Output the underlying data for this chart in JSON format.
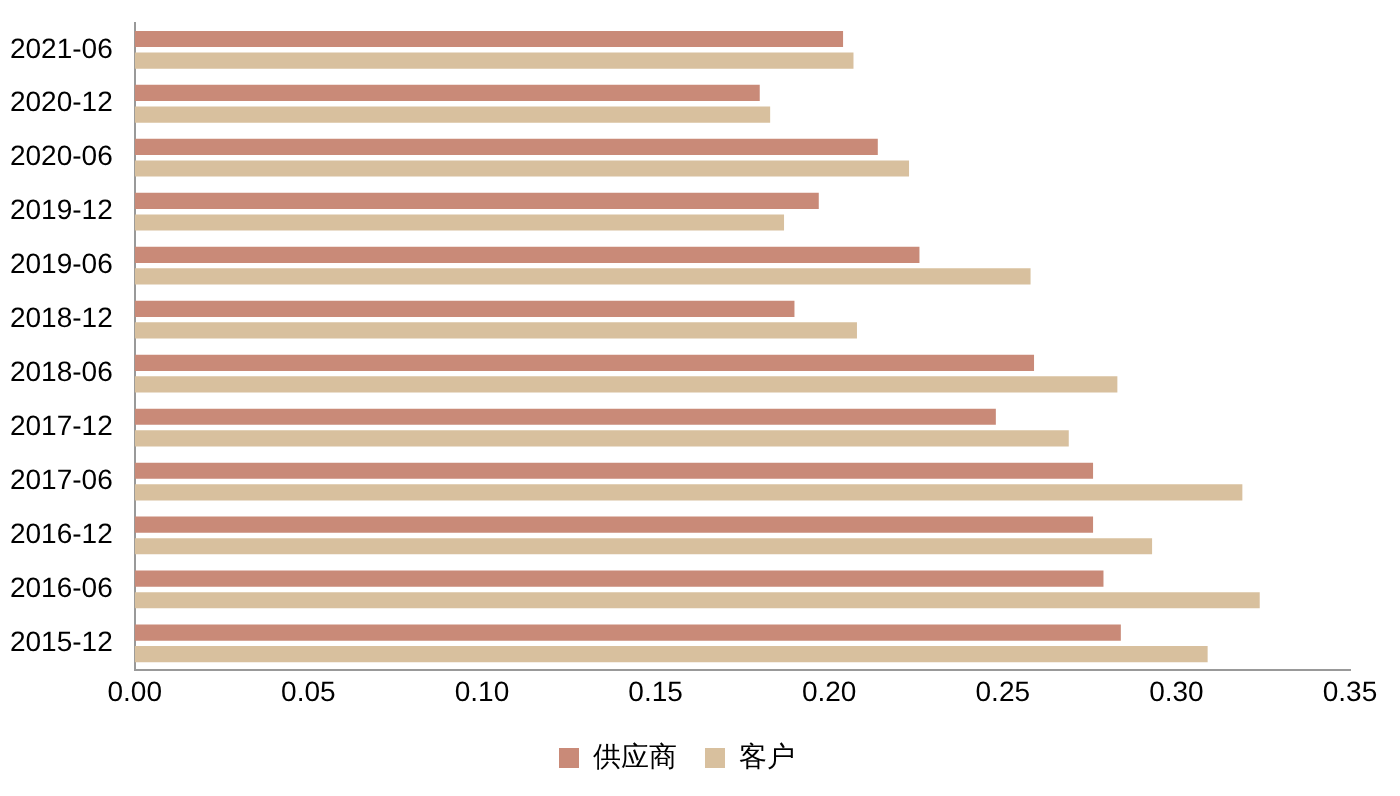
{
  "chart_data": {
    "type": "bar",
    "orientation": "horizontal",
    "categories": [
      "2021-06",
      "2020-12",
      "2020-06",
      "2019-12",
      "2019-06",
      "2018-12",
      "2018-06",
      "2017-12",
      "2017-06",
      "2016-12",
      "2016-06",
      "2015-12"
    ],
    "series": [
      {
        "name": "供应商",
        "color": "#c98a78",
        "values": [
          0.204,
          0.18,
          0.214,
          0.197,
          0.226,
          0.19,
          0.259,
          0.248,
          0.276,
          0.276,
          0.279,
          0.284
        ]
      },
      {
        "name": "客户",
        "color": "#d8c09e",
        "values": [
          0.207,
          0.183,
          0.223,
          0.187,
          0.258,
          0.208,
          0.283,
          0.269,
          0.319,
          0.293,
          0.324,
          0.309
        ]
      }
    ],
    "xlim": [
      0,
      0.35
    ],
    "xticks": [
      {
        "value": 0,
        "label": "0.00"
      },
      {
        "value": 0.05,
        "label": "0.05"
      },
      {
        "value": 0.1,
        "label": "0.10"
      },
      {
        "value": 0.15,
        "label": "0.15"
      },
      {
        "value": 0.2,
        "label": "0.20"
      },
      {
        "value": 0.25,
        "label": "0.25"
      },
      {
        "value": 0.3,
        "label": "0.30"
      },
      {
        "value": 0.35,
        "label": "0.35"
      }
    ],
    "grid": false,
    "legend": "bottom"
  }
}
